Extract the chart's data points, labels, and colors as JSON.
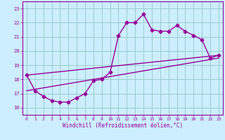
{
  "xlabel": "Windchill (Refroidissement éolien,°C)",
  "background_color": "#cceeff",
  "line_color": "#990099",
  "xlim": [
    -0.5,
    23.5
  ],
  "ylim": [
    15.5,
    23.5
  ],
  "xticks": [
    0,
    1,
    2,
    3,
    4,
    5,
    6,
    7,
    8,
    9,
    10,
    11,
    12,
    13,
    14,
    15,
    16,
    17,
    18,
    19,
    20,
    21,
    22,
    23
  ],
  "yticks": [
    16,
    17,
    18,
    19,
    20,
    21,
    22,
    23
  ],
  "grid_color": "#99cccc",
  "series1_x": [
    0,
    1,
    2,
    3,
    4,
    5,
    6,
    7,
    8,
    9,
    10,
    11,
    12,
    13,
    14,
    15,
    16,
    17,
    18,
    19,
    20,
    21,
    22,
    23
  ],
  "series1_y": [
    18.3,
    17.2,
    16.8,
    16.5,
    16.4,
    16.4,
    16.7,
    17.0,
    17.9,
    18.0,
    18.5,
    21.1,
    22.0,
    22.0,
    22.6,
    21.5,
    21.4,
    21.4,
    21.8,
    21.4,
    21.1,
    20.8,
    19.5,
    19.7
  ],
  "series2_x": [
    0,
    23
  ],
  "series2_y": [
    17.2,
    19.5
  ],
  "series3_x": [
    0,
    23
  ],
  "series3_y": [
    18.3,
    19.7
  ],
  "marker_size": 2.5,
  "line_width": 1.0
}
